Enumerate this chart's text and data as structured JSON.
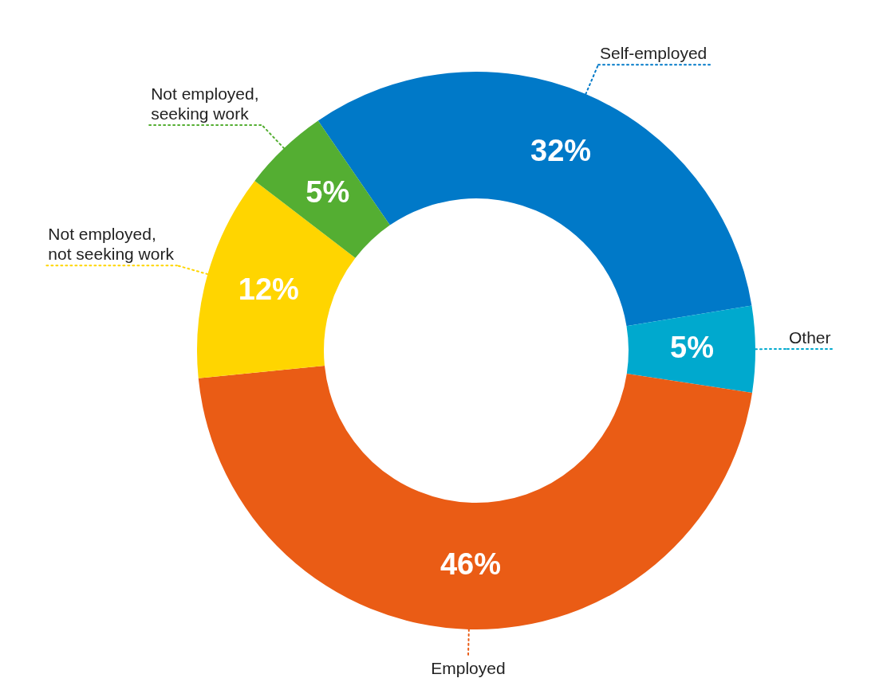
{
  "chart_data": {
    "type": "donut",
    "categories": [
      "Self-employed",
      "Other",
      "Employed",
      "Not employed, not seeking work",
      "Not employed, seeking work"
    ],
    "values": [
      32,
      5,
      46,
      12,
      5
    ],
    "value_labels": [
      "32%",
      "5%",
      "46%",
      "12%",
      "5%"
    ],
    "colors": [
      "#0079c8",
      "#00a9ce",
      "#ea5c15",
      "#ffd500",
      "#54ae32"
    ],
    "legend": false
  }
}
